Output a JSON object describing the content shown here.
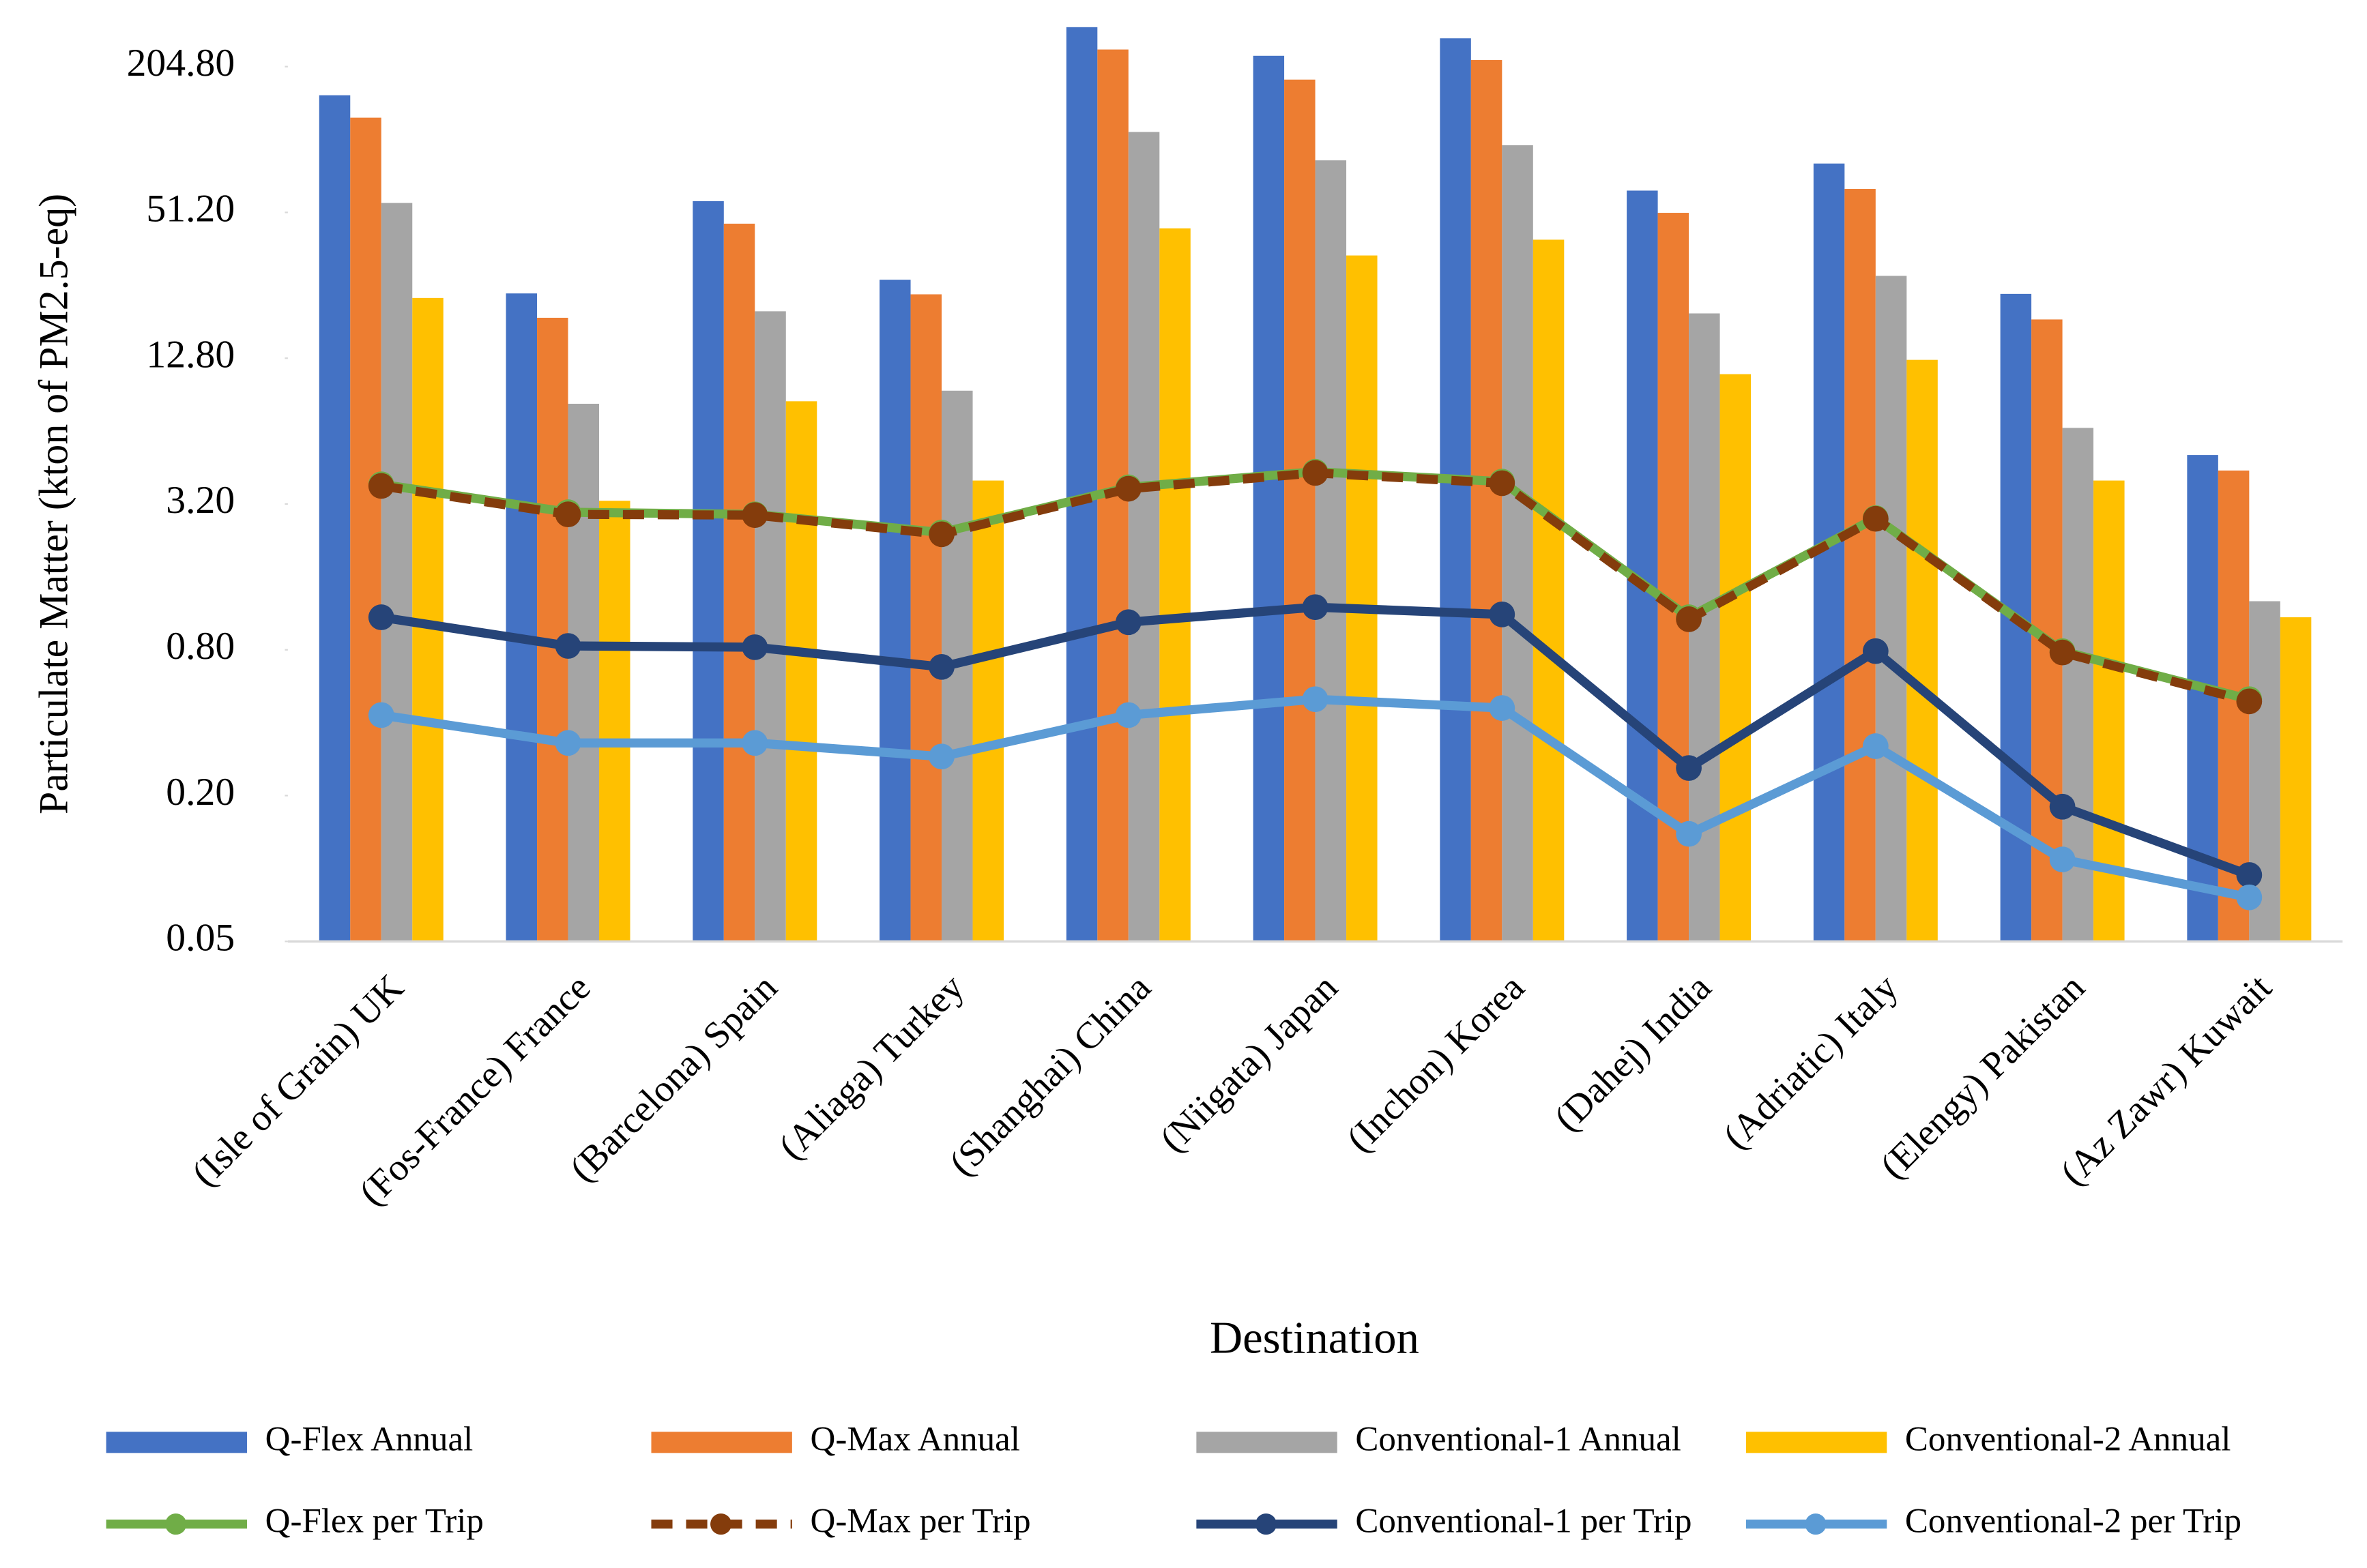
{
  "chart_data": {
    "type": "bar",
    "x_label": "Destination",
    "y_label": "Particulate Matter (kton of PM2.5-eq)",
    "log_scale": true,
    "grid": false,
    "legend": "bottom",
    "categories": [
      "(Isle of Grain) UK",
      "(Fos-France) France",
      "(Barcelona) Spain",
      "(Aliaga) Turkey",
      "(Shanghai) China",
      "(Niigata) Japan",
      "(Inchon) Korea",
      "(Dahej) India",
      "(Adriatic) Italy",
      "(Elengy) Pakistan",
      "(Az Zawr) Kuwait"
    ],
    "ylim": [
      0.05,
      320
    ],
    "yticks": [
      {
        "value": 0.05,
        "label": "0.05"
      },
      {
        "value": 0.2,
        "label": "0.20"
      },
      {
        "value": 0.8,
        "label": "0.80"
      },
      {
        "value": 3.2,
        "label": "3.20"
      },
      {
        "value": 12.8,
        "label": "12.80"
      },
      {
        "value": 51.2,
        "label": "51.20"
      },
      {
        "value": 204.8,
        "label": "204.80"
      }
    ],
    "series": [
      {
        "name": "Q-Flex Annual",
        "type": "bar",
        "color": "#4472c4",
        "values": [
          156,
          23.7,
          57,
          27,
          298,
          227,
          268,
          63,
          81.5,
          23.6,
          5.1
        ]
      },
      {
        "name": "Q-Max Annual",
        "type": "bar",
        "color": "#ed7d31",
        "values": [
          126,
          18.8,
          46,
          23.5,
          241,
          181,
          218,
          51,
          64,
          18.5,
          4.4
        ]
      },
      {
        "name": "Conventional-1 Annual",
        "type": "bar",
        "color": "#a5a5a5",
        "values": [
          56,
          8.3,
          20,
          9.4,
          110,
          84,
          97,
          19.6,
          28,
          6.6,
          1.27
        ]
      },
      {
        "name": "Conventional-2 Annual",
        "type": "bar",
        "color": "#ffc000",
        "values": [
          22.7,
          3.3,
          8.5,
          4.0,
          44,
          34,
          39.5,
          11,
          12.6,
          4.0,
          1.09
        ]
      },
      {
        "name": "Q-Flex per Trip",
        "type": "line",
        "color": "#70ad47",
        "dashed": false,
        "values": [
          3.86,
          2.96,
          2.9,
          2.44,
          3.75,
          4.35,
          3.96,
          1.09,
          2.8,
          0.79,
          0.5
        ]
      },
      {
        "name": "Q-Max per Trip",
        "type": "line",
        "color": "#843c0c",
        "dashed": true,
        "values": [
          3.8,
          2.9,
          2.88,
          2.4,
          3.7,
          4.3,
          3.9,
          1.07,
          2.78,
          0.78,
          0.49
        ]
      },
      {
        "name": "Conventional-1 per Trip",
        "type": "line",
        "color": "#264478",
        "dashed": false,
        "values": [
          1.09,
          0.83,
          0.82,
          0.68,
          1.04,
          1.2,
          1.12,
          0.26,
          0.79,
          0.18,
          0.094
        ]
      },
      {
        "name": "Conventional-2 per Trip",
        "type": "line",
        "color": "#5b9bd5",
        "dashed": false,
        "values": [
          0.43,
          0.33,
          0.33,
          0.29,
          0.43,
          0.5,
          0.46,
          0.139,
          0.32,
          0.109,
          0.076
        ]
      }
    ]
  }
}
